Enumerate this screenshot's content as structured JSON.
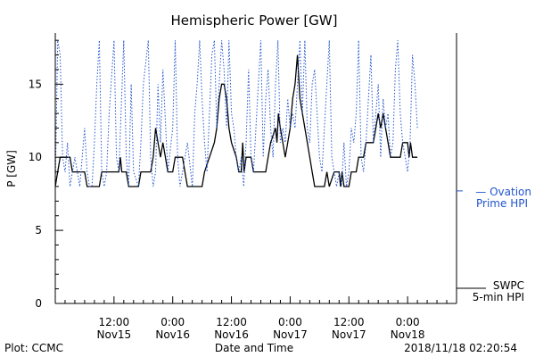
{
  "chart_data": {
    "type": "line",
    "title": "Hemispheric Power [GW]",
    "ylabel": "P [GW]",
    "xlabel": "Date and Time",
    "ylim": [
      0,
      18.5
    ],
    "xlim": [
      0,
      82
    ],
    "yticks": [
      {
        "v": 0,
        "label": "0"
      },
      {
        "v": 5,
        "label": "5"
      },
      {
        "v": 10,
        "label": "10"
      },
      {
        "v": 15,
        "label": "15"
      }
    ],
    "xticks": [
      {
        "x": 12,
        "time": "12:00",
        "date": "Nov15"
      },
      {
        "x": 24,
        "time": "0:00",
        "date": "Nov16"
      },
      {
        "x": 36,
        "time": "12:00",
        "date": "Nov16"
      },
      {
        "x": 48,
        "time": "0:00",
        "date": "Nov17"
      },
      {
        "x": 60,
        "time": "12:00",
        "date": "Nov17"
      },
      {
        "x": 72,
        "time": "0:00",
        "date": "Nov18"
      }
    ],
    "series": [
      {
        "name": "SWPC 5-min HPI",
        "legend_lines": [
          "SWPC",
          "5-min HPI"
        ],
        "color": "#000000",
        "style": "solid",
        "points": [
          [
            0,
            8
          ],
          [
            0.5,
            9
          ],
          [
            1,
            10
          ],
          [
            3,
            10
          ],
          [
            3.5,
            9
          ],
          [
            6,
            9
          ],
          [
            6.5,
            8
          ],
          [
            9,
            8
          ],
          [
            9.5,
            9
          ],
          [
            13,
            9
          ],
          [
            13.3,
            10
          ],
          [
            13.6,
            9
          ],
          [
            14.5,
            9
          ],
          [
            15,
            8
          ],
          [
            17,
            8
          ],
          [
            17.5,
            9
          ],
          [
            19.5,
            9
          ],
          [
            20,
            10
          ],
          [
            20.5,
            12
          ],
          [
            21,
            11
          ],
          [
            21.5,
            10
          ],
          [
            22,
            11
          ],
          [
            22.5,
            10
          ],
          [
            23,
            9
          ],
          [
            24,
            9
          ],
          [
            24.5,
            10
          ],
          [
            26,
            10
          ],
          [
            26.5,
            9
          ],
          [
            27,
            8
          ],
          [
            30,
            8
          ],
          [
            30.5,
            9
          ],
          [
            31.5,
            10
          ],
          [
            32.5,
            11
          ],
          [
            33,
            12
          ],
          [
            33.5,
            14
          ],
          [
            34,
            15
          ],
          [
            34.5,
            15
          ],
          [
            35,
            14
          ],
          [
            35.5,
            12
          ],
          [
            36,
            11
          ],
          [
            37,
            10
          ],
          [
            37.5,
            9
          ],
          [
            38,
            9
          ],
          [
            38.3,
            11
          ],
          [
            38.6,
            9
          ],
          [
            39,
            10
          ],
          [
            40,
            10
          ],
          [
            40.5,
            9
          ],
          [
            43,
            9
          ],
          [
            43.5,
            10
          ],
          [
            44,
            11
          ],
          [
            45,
            12
          ],
          [
            45.3,
            11
          ],
          [
            45.6,
            13
          ],
          [
            46,
            12
          ],
          [
            46.5,
            11
          ],
          [
            47,
            10
          ],
          [
            47.5,
            11
          ],
          [
            48,
            12
          ],
          [
            48.5,
            14
          ],
          [
            49,
            15
          ],
          [
            49.5,
            17
          ],
          [
            50,
            14
          ],
          [
            51,
            12
          ],
          [
            52,
            10
          ],
          [
            52.5,
            9
          ],
          [
            53,
            8
          ],
          [
            55,
            8
          ],
          [
            55.5,
            9
          ],
          [
            56,
            8
          ],
          [
            57,
            9
          ],
          [
            58,
            9
          ],
          [
            58.3,
            8
          ],
          [
            58.6,
            9
          ],
          [
            59,
            8
          ],
          [
            60,
            8
          ],
          [
            60.5,
            9
          ],
          [
            61.5,
            9
          ],
          [
            62,
            10
          ],
          [
            63,
            10
          ],
          [
            63.5,
            11
          ],
          [
            65,
            11
          ],
          [
            65.5,
            12
          ],
          [
            66,
            13
          ],
          [
            66.5,
            12
          ],
          [
            67,
            13
          ],
          [
            67.5,
            12
          ],
          [
            68,
            11
          ],
          [
            68.5,
            10
          ],
          [
            70.5,
            10
          ],
          [
            71,
            11
          ],
          [
            72,
            11
          ],
          [
            72.3,
            10
          ],
          [
            72.6,
            11
          ],
          [
            73,
            10
          ],
          [
            74,
            10
          ]
        ]
      },
      {
        "name": "Ovation Prime HPI",
        "legend_lines": [
          "— Ovation",
          "Prime HPI"
        ],
        "color": "#2255cc",
        "style": "dotted",
        "points": [
          [
            0,
            8
          ],
          [
            0.5,
            18
          ],
          [
            1,
            17
          ],
          [
            1.5,
            10
          ],
          [
            2,
            9
          ],
          [
            2.5,
            11
          ],
          [
            3,
            8
          ],
          [
            4,
            10
          ],
          [
            4.5,
            9
          ],
          [
            5,
            8
          ],
          [
            5.5,
            10
          ],
          [
            6,
            12
          ],
          [
            6.5,
            9
          ],
          [
            7,
            8
          ],
          [
            7.5,
            8
          ],
          [
            8,
            11
          ],
          [
            8.5,
            15
          ],
          [
            9,
            18
          ],
          [
            9.5,
            9
          ],
          [
            10,
            8
          ],
          [
            10.5,
            9
          ],
          [
            11,
            13
          ],
          [
            12,
            18
          ],
          [
            12.5,
            10
          ],
          [
            13,
            9
          ],
          [
            14,
            18
          ],
          [
            14.5,
            10
          ],
          [
            15,
            8
          ],
          [
            15.5,
            15
          ],
          [
            16,
            9
          ],
          [
            17,
            8
          ],
          [
            17.5,
            11
          ],
          [
            18,
            15
          ],
          [
            19,
            18
          ],
          [
            19.5,
            10
          ],
          [
            20,
            8
          ],
          [
            20.5,
            9
          ],
          [
            21,
            15
          ],
          [
            21.5,
            11
          ],
          [
            22,
            16
          ],
          [
            23,
            9
          ],
          [
            24,
            12
          ],
          [
            24.5,
            18
          ],
          [
            25,
            10
          ],
          [
            25.5,
            8
          ],
          [
            26,
            9
          ],
          [
            27,
            11
          ],
          [
            28,
            8
          ],
          [
            28.5,
            13
          ],
          [
            29,
            15
          ],
          [
            29.5,
            18
          ],
          [
            30,
            14
          ],
          [
            30.5,
            11
          ],
          [
            31,
            9
          ],
          [
            31.5,
            13
          ],
          [
            32,
            17
          ],
          [
            32.5,
            18
          ],
          [
            33,
            12
          ],
          [
            33.5,
            15
          ],
          [
            34,
            18
          ],
          [
            34.5,
            16
          ],
          [
            35,
            12
          ],
          [
            35.5,
            18
          ],
          [
            36,
            13
          ],
          [
            36.5,
            12
          ],
          [
            37,
            10
          ],
          [
            37.5,
            9
          ],
          [
            38,
            10
          ],
          [
            38.5,
            8
          ],
          [
            39,
            11
          ],
          [
            39.5,
            16
          ],
          [
            40,
            10
          ],
          [
            40.5,
            9
          ],
          [
            41,
            12
          ],
          [
            41.5,
            15
          ],
          [
            42,
            18
          ],
          [
            42.5,
            10
          ],
          [
            43,
            14
          ],
          [
            43.5,
            16
          ],
          [
            44,
            12
          ],
          [
            44.5,
            10
          ],
          [
            45,
            15
          ],
          [
            45.5,
            18
          ],
          [
            46,
            11
          ],
          [
            46.5,
            12
          ],
          [
            47,
            11
          ],
          [
            47.5,
            14
          ],
          [
            48,
            12
          ],
          [
            48.5,
            13
          ],
          [
            49,
            12
          ],
          [
            49.5,
            15
          ],
          [
            50,
            18
          ],
          [
            50.5,
            13
          ],
          [
            51,
            18
          ],
          [
            51.5,
            12
          ],
          [
            52,
            11
          ],
          [
            52.5,
            15
          ],
          [
            53,
            16
          ],
          [
            53.5,
            13
          ],
          [
            54,
            10
          ],
          [
            54.5,
            9
          ],
          [
            55,
            12
          ],
          [
            56,
            18
          ],
          [
            56.5,
            10
          ],
          [
            57,
            9
          ],
          [
            57.5,
            8
          ],
          [
            58,
            9
          ],
          [
            58.5,
            8
          ],
          [
            59,
            11
          ],
          [
            59.5,
            8
          ],
          [
            60,
            9
          ],
          [
            60.5,
            12
          ],
          [
            61,
            11
          ],
          [
            61.5,
            13
          ],
          [
            62,
            18
          ],
          [
            62.5,
            10
          ],
          [
            63,
            9
          ],
          [
            63.5,
            11
          ],
          [
            64,
            14
          ],
          [
            64.5,
            17
          ],
          [
            65,
            11
          ],
          [
            65.5,
            13
          ],
          [
            66,
            15
          ],
          [
            66.5,
            10
          ],
          [
            67,
            14
          ],
          [
            67.5,
            12
          ],
          [
            68,
            13
          ],
          [
            68.5,
            10
          ],
          [
            69,
            11
          ],
          [
            69.5,
            16
          ],
          [
            70,
            18
          ],
          [
            70.5,
            13
          ],
          [
            71,
            11
          ],
          [
            71.5,
            10
          ],
          [
            72,
            9
          ],
          [
            72.5,
            11
          ],
          [
            73,
            17
          ],
          [
            73.5,
            15
          ],
          [
            74,
            12
          ]
        ]
      }
    ],
    "grid": false,
    "legend_position": "right"
  },
  "footer": {
    "plot_credit": "Plot: CCMC",
    "timestamp": "2018/11/18 02:20:54"
  }
}
